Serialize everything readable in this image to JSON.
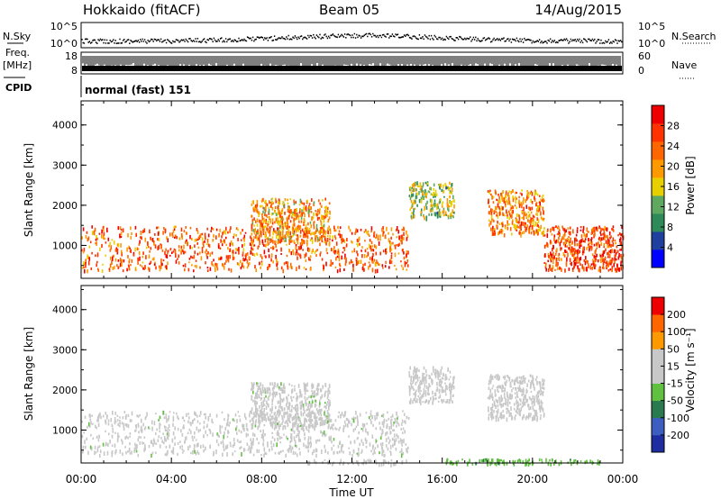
{
  "header": {
    "title": "Hokkaido (fitACF)",
    "beam": "Beam 05",
    "date": "14/Aug/2015"
  },
  "strips": {
    "nsky_label": "N.Sky",
    "nsearch_label": "N.Search",
    "nsky_ticks": [
      "10^5",
      "10^0"
    ],
    "nsearch_ticks": [
      "10^5",
      "10^0"
    ],
    "freq_label_1": "Freq.",
    "freq_label_2": "[MHz]",
    "freq_ticks": [
      "18",
      "8"
    ],
    "nave_label": "Nave",
    "nave_ticks": [
      "60",
      "0"
    ],
    "cpid_label": "CPID",
    "cpid_text": "normal (fast) 151"
  },
  "colors": {
    "power_scale": [
      "#0000ff",
      "#2040a0",
      "#2e8b57",
      "#5fa860",
      "#e8d000",
      "#ff9900",
      "#ff6600",
      "#ff3300",
      "#ee0000"
    ],
    "velocity_scale": [
      "#1e2ea0",
      "#3c5ec0",
      "#2a7a50",
      "#60c040",
      "#c8c8c8",
      "#c8c8c8",
      "#ff9900",
      "#ff6600",
      "#ee0000"
    ]
  },
  "chart_data": [
    {
      "type": "heatmap",
      "panel": "power",
      "ylabel": "Slant Range [km]",
      "ylim": [
        180,
        4600
      ],
      "yticks": [
        "1000",
        "2000",
        "3000",
        "4000"
      ],
      "xticks": [
        "00:00",
        "04:00",
        "08:00",
        "12:00",
        "16:00",
        "20:00",
        "00:00"
      ],
      "xlim": [
        0,
        24
      ],
      "colorbar_label": "Power [dB]",
      "colorbar_ticks": [
        "28",
        "24",
        "20",
        "16",
        "12",
        "8",
        "4"
      ],
      "colorbar_range": [
        0,
        32
      ],
      "echo_regions": [
        {
          "t0": 0.0,
          "t1": 14.5,
          "r0": 400,
          "r1": 1500,
          "level": 24
        },
        {
          "t0": 7.5,
          "t1": 11.0,
          "r0": 1100,
          "r1": 2200,
          "level": 20
        },
        {
          "t0": 14.5,
          "t1": 16.5,
          "r0": 1700,
          "r1": 2600,
          "level": 14
        },
        {
          "t0": 18.0,
          "t1": 20.5,
          "r0": 1300,
          "r1": 2400,
          "level": 22
        },
        {
          "t0": 20.5,
          "t1": 24.0,
          "r0": 400,
          "r1": 1500,
          "level": 26
        }
      ]
    },
    {
      "type": "heatmap",
      "panel": "velocity",
      "ylabel": "Slant Range [km]",
      "ylim": [
        180,
        4600
      ],
      "yticks": [
        "1000",
        "2000",
        "3000",
        "4000"
      ],
      "xticks": [
        "00:00",
        "04:00",
        "08:00",
        "12:00",
        "16:00",
        "20:00",
        "00:00"
      ],
      "xlim": [
        0,
        24
      ],
      "xlabel": "Time UT",
      "colorbar_label": "Velocity [m s⁻¹]",
      "colorbar_ticks": [
        "200",
        "100",
        "50",
        "15",
        "-15",
        "-50",
        "-100",
        "-200"
      ],
      "colorbar_range": [
        -250,
        250
      ],
      "echo_regions": [
        {
          "t0": 0.0,
          "t1": 14.5,
          "r0": 400,
          "r1": 1500,
          "level": 0
        },
        {
          "t0": 7.5,
          "t1": 11.0,
          "r0": 1100,
          "r1": 2200,
          "level": 0
        },
        {
          "t0": 14.5,
          "t1": 16.5,
          "r0": 1700,
          "r1": 2600,
          "level": 20
        },
        {
          "t0": 18.0,
          "t1": 20.5,
          "r0": 1300,
          "r1": 2400,
          "level": 30
        },
        {
          "t0": 10.0,
          "t1": 14.5,
          "r0": 180,
          "r1": 280,
          "level": 20
        },
        {
          "t0": 16.0,
          "t1": 23.0,
          "r0": 180,
          "r1": 300,
          "level": -60
        }
      ]
    }
  ]
}
